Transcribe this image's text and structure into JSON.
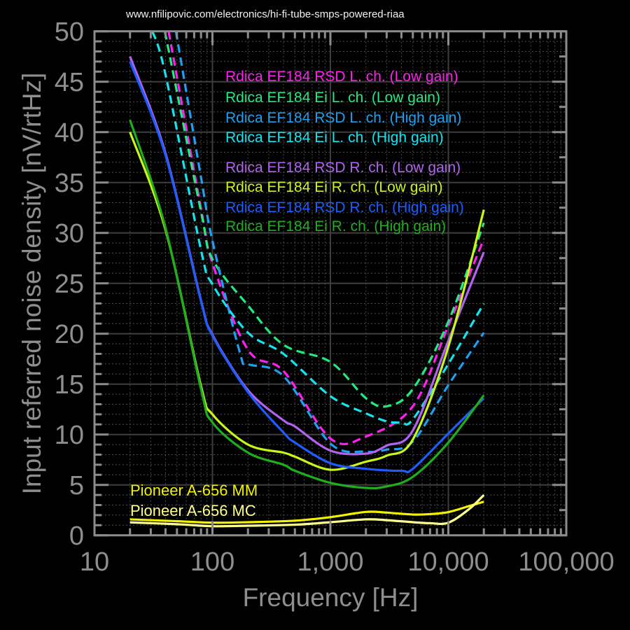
{
  "header": {
    "source_text": "www.nfilipovic.com/electronics/hi-fi-tube-smps-powered-riaa"
  },
  "chart_data": {
    "type": "line",
    "xlabel": "Frequency [Hz]",
    "ylabel": "Input referred noise density [nV/rtHz]",
    "x_log_scale": true,
    "xlim": [
      10,
      100000
    ],
    "ylim": [
      0,
      50
    ],
    "grid": true,
    "legend_placement": "inside-top-center",
    "x_ticks": [
      {
        "value": 10,
        "label": "10"
      },
      {
        "value": 100,
        "label": "100"
      },
      {
        "value": 1000,
        "label": "1,000"
      },
      {
        "value": 10000,
        "label": "10,000"
      },
      {
        "value": 100000,
        "label": "100,000"
      }
    ],
    "y_ticks": [
      {
        "value": 0,
        "label": "0"
      },
      {
        "value": 5,
        "label": "5"
      },
      {
        "value": 10,
        "label": "10"
      },
      {
        "value": 15,
        "label": "15"
      },
      {
        "value": 20,
        "label": "20"
      },
      {
        "value": 25,
        "label": "25"
      },
      {
        "value": 30,
        "label": "30"
      },
      {
        "value": 35,
        "label": "35"
      },
      {
        "value": 40,
        "label": "40"
      },
      {
        "value": 45,
        "label": "45"
      },
      {
        "value": 50,
        "label": "50"
      }
    ],
    "series": [
      {
        "name": "Rdica EF184 RSD L. ch. (Low gain)",
        "color": "#ff1fee",
        "dashed": true,
        "points": [
          [
            42.5,
            50
          ],
          [
            80,
            32.4
          ],
          [
            100,
            27.0
          ],
          [
            200,
            18.4
          ],
          [
            400,
            16.3
          ],
          [
            1000,
            9.6
          ],
          [
            2000,
            9.8
          ],
          [
            5000,
            12.8
          ],
          [
            10000,
            20.8
          ],
          [
            20000,
            29.4
          ]
        ]
      },
      {
        "name": "Rdica EF184 Ei L. ch. (Low gain)",
        "color": "#20ea80",
        "dashed": true,
        "points": [
          [
            39.5,
            50
          ],
          [
            80,
            32.1
          ],
          [
            100,
            27.4
          ],
          [
            200,
            22.8
          ],
          [
            400,
            18.9
          ],
          [
            1000,
            17.2
          ],
          [
            2000,
            13.6
          ],
          [
            3000,
            12.8
          ],
          [
            5000,
            14.5
          ],
          [
            10000,
            21.2
          ],
          [
            20000,
            31.0
          ]
        ]
      },
      {
        "name": "Rdica EF184 RSD L. ch. (High gain)",
        "color": "#1e9ff0",
        "dashed": true,
        "points": [
          [
            49,
            50
          ],
          [
            80,
            35.5
          ],
          [
            100,
            29.2
          ],
          [
            170,
            18.2
          ],
          [
            200,
            17.0
          ],
          [
            400,
            15.8
          ],
          [
            1000,
            9.1
          ],
          [
            2000,
            8.3
          ],
          [
            3000,
            8.5
          ],
          [
            5000,
            9.3
          ],
          [
            10000,
            14.9
          ],
          [
            20000,
            20.1
          ]
        ]
      },
      {
        "name": "Rdica EF184 Ei L. ch. (High gain)",
        "color": "#14e4ee",
        "dashed": true,
        "points": [
          [
            31,
            50
          ],
          [
            40,
            45.7
          ],
          [
            80,
            28.3
          ],
          [
            100,
            24.9
          ],
          [
            200,
            20.1
          ],
          [
            400,
            18.0
          ],
          [
            1000,
            13.8
          ],
          [
            2000,
            12.1
          ],
          [
            3000,
            11.3
          ],
          [
            4000,
            11.2
          ],
          [
            5000,
            11.5
          ],
          [
            10000,
            17.0
          ],
          [
            20000,
            23.0
          ]
        ]
      },
      {
        "name": "Rdica EF184 RSD R. ch. (Low gain)",
        "color": "#b162f0",
        "dashed": false,
        "points": [
          [
            20,
            47.5
          ],
          [
            40,
            37.9
          ],
          [
            80,
            23.3
          ],
          [
            100,
            19.9
          ],
          [
            200,
            14.4
          ],
          [
            400,
            11.4
          ],
          [
            500,
            10.8
          ],
          [
            1000,
            8.4
          ],
          [
            2000,
            8.1
          ],
          [
            3000,
            8.9
          ],
          [
            5000,
            10.4
          ],
          [
            10000,
            19.3
          ],
          [
            20000,
            28.1
          ]
        ]
      },
      {
        "name": "Rdica EF184 Ei R. ch. (Low gain)",
        "color": "#c8f51a",
        "dashed": false,
        "points": [
          [
            20,
            40.0
          ],
          [
            40,
            30.3
          ],
          [
            80,
            14.8
          ],
          [
            100,
            12.0
          ],
          [
            200,
            9.0
          ],
          [
            400,
            8.2
          ],
          [
            500,
            7.8
          ],
          [
            1000,
            6.5
          ],
          [
            2000,
            7.3
          ],
          [
            3000,
            7.9
          ],
          [
            5000,
            9.5
          ],
          [
            10000,
            18.7
          ],
          [
            20000,
            32.3
          ]
        ]
      },
      {
        "name": "Rdica EF184 RSD R. ch. (High gain)",
        "color": "#1f5cff",
        "dashed": false,
        "points": [
          [
            20,
            47.0
          ],
          [
            40,
            37.7
          ],
          [
            80,
            23.2
          ],
          [
            100,
            19.8
          ],
          [
            200,
            14.2
          ],
          [
            400,
            10.2
          ],
          [
            500,
            9.2
          ],
          [
            1000,
            7.15
          ],
          [
            2000,
            6.6
          ],
          [
            4000,
            6.4
          ],
          [
            5000,
            6.6
          ],
          [
            10000,
            10.1
          ],
          [
            20000,
            13.6
          ]
        ]
      },
      {
        "name": "Rdica EF184 Ei R. ch. (High gain)",
        "color": "#1eae1e",
        "dashed": false,
        "points": [
          [
            20,
            41.2
          ],
          [
            40,
            30.5
          ],
          [
            80,
            14.5
          ],
          [
            100,
            11.2
          ],
          [
            200,
            8.2
          ],
          [
            400,
            7.0
          ],
          [
            500,
            6.4
          ],
          [
            1000,
            5.2
          ],
          [
            2000,
            4.7
          ],
          [
            3000,
            4.85
          ],
          [
            5000,
            5.8
          ],
          [
            10000,
            9.2
          ],
          [
            20000,
            13.9
          ]
        ]
      },
      {
        "name": "Pioneer A-656 MM",
        "color": "#f2f200",
        "dashed": false,
        "points": [
          [
            20,
            1.58
          ],
          [
            50,
            1.4
          ],
          [
            100,
            1.25
          ],
          [
            200,
            1.3
          ],
          [
            500,
            1.45
          ],
          [
            1000,
            1.8
          ],
          [
            2000,
            2.32
          ],
          [
            3000,
            2.25
          ],
          [
            5000,
            2.06
          ],
          [
            7000,
            2.1
          ],
          [
            10000,
            2.3
          ],
          [
            15000,
            2.9
          ],
          [
            20000,
            3.33
          ]
        ]
      },
      {
        "name": "Pioneer A-656 MC",
        "color": "#ffff8c",
        "dashed": false,
        "points": [
          [
            20,
            1.28
          ],
          [
            50,
            1.1
          ],
          [
            100,
            0.9
          ],
          [
            200,
            0.95
          ],
          [
            500,
            1.05
          ],
          [
            1000,
            1.3
          ],
          [
            2000,
            1.58
          ],
          [
            3000,
            1.5
          ],
          [
            5000,
            1.3
          ],
          [
            7000,
            1.2
          ],
          [
            10000,
            1.25
          ],
          [
            15000,
            2.6
          ],
          [
            20000,
            4.0
          ]
        ]
      }
    ]
  }
}
